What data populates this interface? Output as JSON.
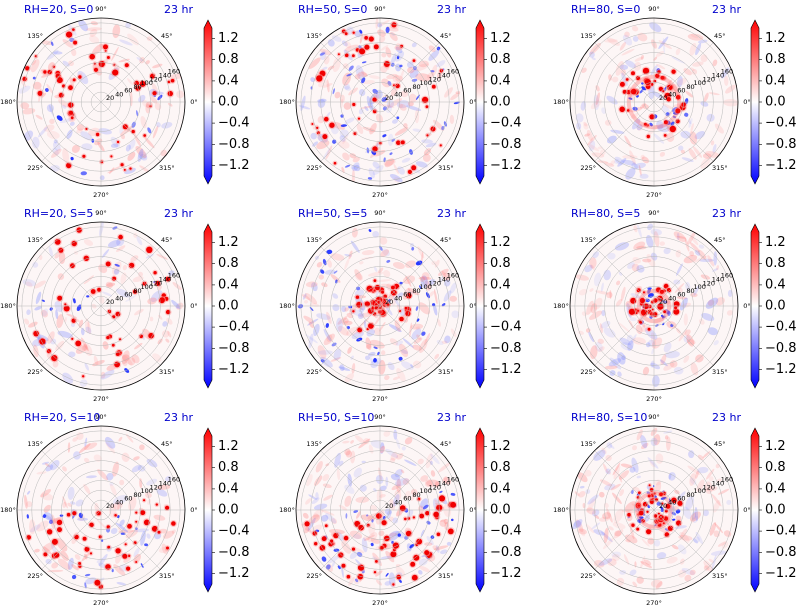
{
  "figure": {
    "title_color": "#0000cc",
    "time_label": "23 hr",
    "angle_labels": [
      "0°",
      "45°",
      "90°",
      "135°",
      "180°",
      "225°",
      "270°",
      "315°"
    ],
    "radial_labels": [
      "20",
      "40",
      "60",
      "80",
      "100",
      "120",
      "140",
      "160"
    ],
    "colorbar": {
      "ticks": [
        "1.2",
        "0.8",
        "0.4",
        "0.0",
        "−0.4",
        "−0.8",
        "−1.2"
      ],
      "tick_values": [
        1.2,
        0.8,
        0.4,
        0.0,
        -0.4,
        -0.8,
        -1.2
      ],
      "range": [
        -1.4,
        1.4
      ],
      "colormap": "bwr",
      "low_color": "#0000ff",
      "mid_color": "#ffffff",
      "high_color": "#ff0000"
    }
  },
  "chart_data": [
    {
      "type": "heatmap",
      "projection": "polar",
      "title": "RH=20, S=0",
      "rh": 20,
      "s": 0,
      "time": "23 hr",
      "pattern": "scattered convective cells near outer radii"
    },
    {
      "type": "heatmap",
      "projection": "polar",
      "title": "RH=50, S=0",
      "rh": 50,
      "s": 0,
      "time": "23 hr",
      "pattern": "scattered cells with widespread weak perturbations"
    },
    {
      "type": "heatmap",
      "projection": "polar",
      "title": "RH=80, S=0",
      "rh": 80,
      "s": 0,
      "time": "23 hr",
      "pattern": "cells organized in a ring around the center"
    },
    {
      "type": "heatmap",
      "projection": "polar",
      "title": "RH=20, S=5",
      "rh": 20,
      "s": 5,
      "time": "23 hr",
      "pattern": "scattered convective cells"
    },
    {
      "type": "heatmap",
      "projection": "polar",
      "title": "RH=50, S=5",
      "rh": 50,
      "s": 5,
      "time": "23 hr",
      "pattern": "cells concentrated near the center"
    },
    {
      "type": "heatmap",
      "projection": "polar",
      "title": "RH=80, S=5",
      "rh": 80,
      "s": 5,
      "time": "23 hr",
      "pattern": "compact eyewall-like ring near the center"
    },
    {
      "type": "heatmap",
      "projection": "polar",
      "title": "RH=20, S=10",
      "rh": 20,
      "s": 10,
      "time": "23 hr",
      "pattern": "cells biased toward the lower-right quadrant"
    },
    {
      "type": "heatmap",
      "projection": "polar",
      "title": "RH=50, S=10",
      "rh": 50,
      "s": 10,
      "time": "23 hr",
      "pattern": "cells biased toward the right side"
    },
    {
      "type": "heatmap",
      "projection": "polar",
      "title": "RH=80, S=10",
      "rh": 80,
      "s": 10,
      "time": "23 hr",
      "pattern": "strong asymmetric ring with spiral band"
    }
  ]
}
